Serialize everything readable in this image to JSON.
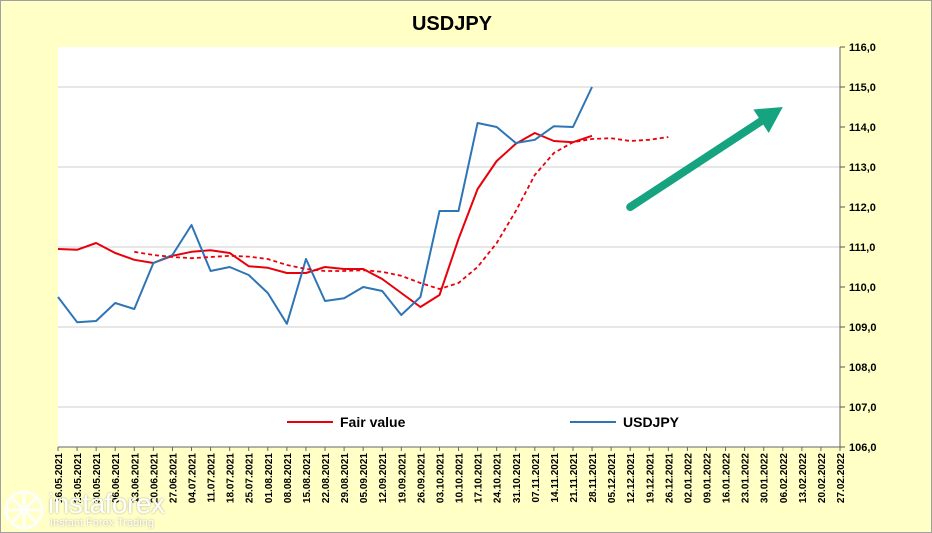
{
  "chart_data": {
    "type": "line",
    "title": "USDJPY",
    "ylim": [
      106.0,
      116.0
    ],
    "yticks": [
      "106,0",
      "107,0",
      "108,0",
      "109,0",
      "110,0",
      "111,0",
      "112,0",
      "113,0",
      "114,0",
      "115,0",
      "116,0"
    ],
    "y_axis_side": "right",
    "grid": "horizontal",
    "legend_position": "bottom",
    "categories": [
      "16.05.2021",
      "23.05.2021",
      "30.05.2021",
      "06.06.2021",
      "13.06.2021",
      "20.06.2021",
      "27.06.2021",
      "04.07.2021",
      "11.07.2021",
      "18.07.2021",
      "25.07.2021",
      "01.08.2021",
      "08.08.2021",
      "15.08.2021",
      "22.08.2021",
      "29.08.2021",
      "05.09.2021",
      "12.09.2021",
      "19.09.2021",
      "26.09.2021",
      "03.10.2021",
      "10.10.2021",
      "17.10.2021",
      "24.10.2021",
      "31.10.2021",
      "07.11.2021",
      "14.11.2021",
      "21.11.2021",
      "28.11.2021",
      "05.12.2021",
      "12.12.2021",
      "19.12.2021",
      "26.12.2021",
      "02.01.2022",
      "09.01.2022",
      "16.01.2022",
      "23.01.2022",
      "30.01.2022",
      "06.02.2022",
      "13.02.2022",
      "20.02.2022",
      "27.02.2022"
    ],
    "series": [
      {
        "name": "Fair value",
        "color": "#e8000b",
        "style": "solid",
        "values": [
          110.95,
          110.93,
          111.1,
          110.85,
          110.68,
          110.6,
          110.78,
          110.88,
          110.92,
          110.85,
          110.52,
          110.48,
          110.35,
          110.35,
          110.5,
          110.45,
          110.45,
          110.2,
          109.85,
          109.5,
          109.8,
          111.2,
          112.45,
          113.15,
          113.58,
          113.85,
          113.65,
          113.62,
          113.78,
          null,
          null,
          null,
          null,
          null,
          null,
          null,
          null,
          null,
          null,
          null,
          null,
          null
        ]
      },
      {
        "name": "USDJPY",
        "color": "#2e75b6",
        "style": "solid",
        "values": [
          109.75,
          109.12,
          109.15,
          109.6,
          109.45,
          110.6,
          110.8,
          111.55,
          110.4,
          110.5,
          110.3,
          109.85,
          109.08,
          110.7,
          109.65,
          109.72,
          110.0,
          109.9,
          109.3,
          109.75,
          111.9,
          111.9,
          114.1,
          114.0,
          113.6,
          113.68,
          114.02,
          114.0,
          115.0,
          null,
          null,
          null,
          null,
          null,
          null,
          null,
          null,
          null,
          null,
          null,
          null,
          null
        ]
      },
      {
        "name": "",
        "color": "#e8000b",
        "style": "dashed",
        "values": [
          null,
          null,
          null,
          null,
          110.88,
          110.8,
          110.75,
          110.72,
          110.75,
          110.78,
          110.76,
          110.7,
          110.55,
          110.45,
          110.4,
          110.4,
          110.42,
          110.38,
          110.28,
          110.1,
          109.95,
          110.1,
          110.5,
          111.1,
          111.9,
          112.8,
          113.35,
          113.62,
          113.7,
          113.72,
          113.65,
          113.68,
          113.75,
          null,
          null,
          null,
          null,
          null,
          null,
          null,
          null,
          null
        ]
      }
    ],
    "legend": [
      {
        "label": "Fair value",
        "color": "#e8000b"
      },
      {
        "label": "USDJPY",
        "color": "#2e75b6"
      }
    ],
    "annotation": {
      "type": "arrow",
      "color": "#16a37f",
      "from": {
        "x": "12.12.2021",
        "y": 112.0
      },
      "to": {
        "x": "06.02.2022",
        "y": 114.5
      }
    }
  },
  "watermark": {
    "name": "instaforex",
    "tagline": "Instant Forex Trading"
  }
}
